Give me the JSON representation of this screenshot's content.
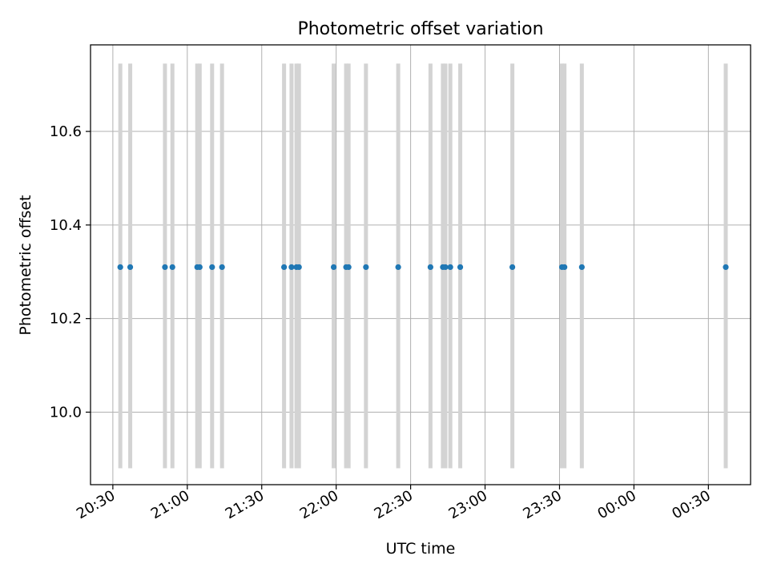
{
  "chart_data": {
    "type": "scatter",
    "title": "Photometric offset variation",
    "xlabel": "UTC time",
    "ylabel": "Photometric offset",
    "x_ticks": [
      "20:30",
      "21:00",
      "21:30",
      "22:00",
      "22:30",
      "23:00",
      "23:30",
      "00:00",
      "00:30"
    ],
    "y_ticks": [
      "10.0",
      "10.2",
      "10.4",
      "10.6"
    ],
    "xlim": [
      "20:21",
      "00:47"
    ],
    "ylim": [
      9.845,
      10.785
    ],
    "grid": true,
    "band_range": [
      9.88,
      10.745
    ],
    "colors": {
      "marker": "#1f77b4",
      "band": "#d3d3d3",
      "grid": "#b0b0b0"
    },
    "series": [
      {
        "x": [
          "20:33",
          "20:37",
          "20:51",
          "20:54",
          "21:04",
          "21:05",
          "21:10",
          "21:14",
          "21:39",
          "21:42",
          "21:44",
          "21:45",
          "21:59",
          "22:04",
          "22:05",
          "22:12",
          "22:25",
          "22:38",
          "22:43",
          "22:44",
          "22:46",
          "22:50",
          "23:11",
          "23:31",
          "23:32",
          "23:39",
          "00:37"
        ],
        "y": [
          10.31,
          10.31,
          10.31,
          10.31,
          10.31,
          10.31,
          10.31,
          10.31,
          10.31,
          10.31,
          10.31,
          10.31,
          10.31,
          10.31,
          10.31,
          10.31,
          10.31,
          10.31,
          10.31,
          10.31,
          10.31,
          10.31,
          10.31,
          10.31,
          10.31,
          10.31,
          10.31
        ]
      }
    ]
  }
}
